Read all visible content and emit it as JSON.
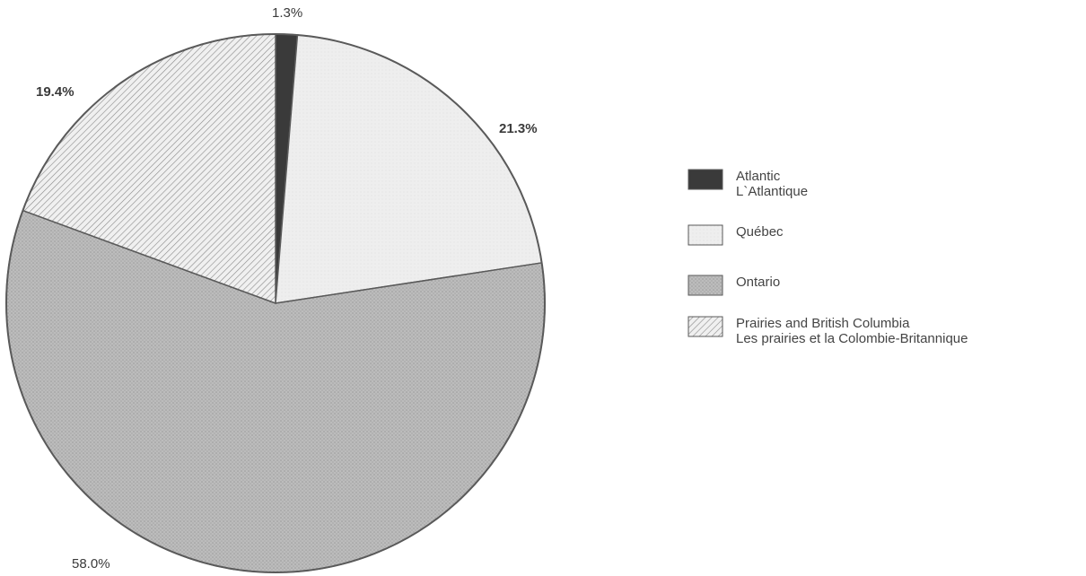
{
  "chart_data": {
    "type": "pie",
    "slices": [
      {
        "label_en": "Atlantic",
        "label_fr": "L`Atlantique",
        "value": 1.3,
        "value_label": "1.3%",
        "color": "#3a3a3a",
        "pattern": "solid-dark"
      },
      {
        "label_en": "Québec",
        "label_fr": "",
        "value": 21.3,
        "value_label": "21.3%",
        "color": "#ececec",
        "pattern": "light"
      },
      {
        "label_en": "Ontario",
        "label_fr": "",
        "value": 58.0,
        "value_label": "58.0%",
        "color": "#b8b8b8",
        "pattern": "dotted"
      },
      {
        "label_en": "Prairies and British Columbia",
        "label_fr": "Les prairies et la Colombie-Britannique",
        "value": 19.4,
        "value_label": "19.4%",
        "color": "#e2e2e2",
        "pattern": "hatched"
      }
    ],
    "legend_position": "right"
  }
}
